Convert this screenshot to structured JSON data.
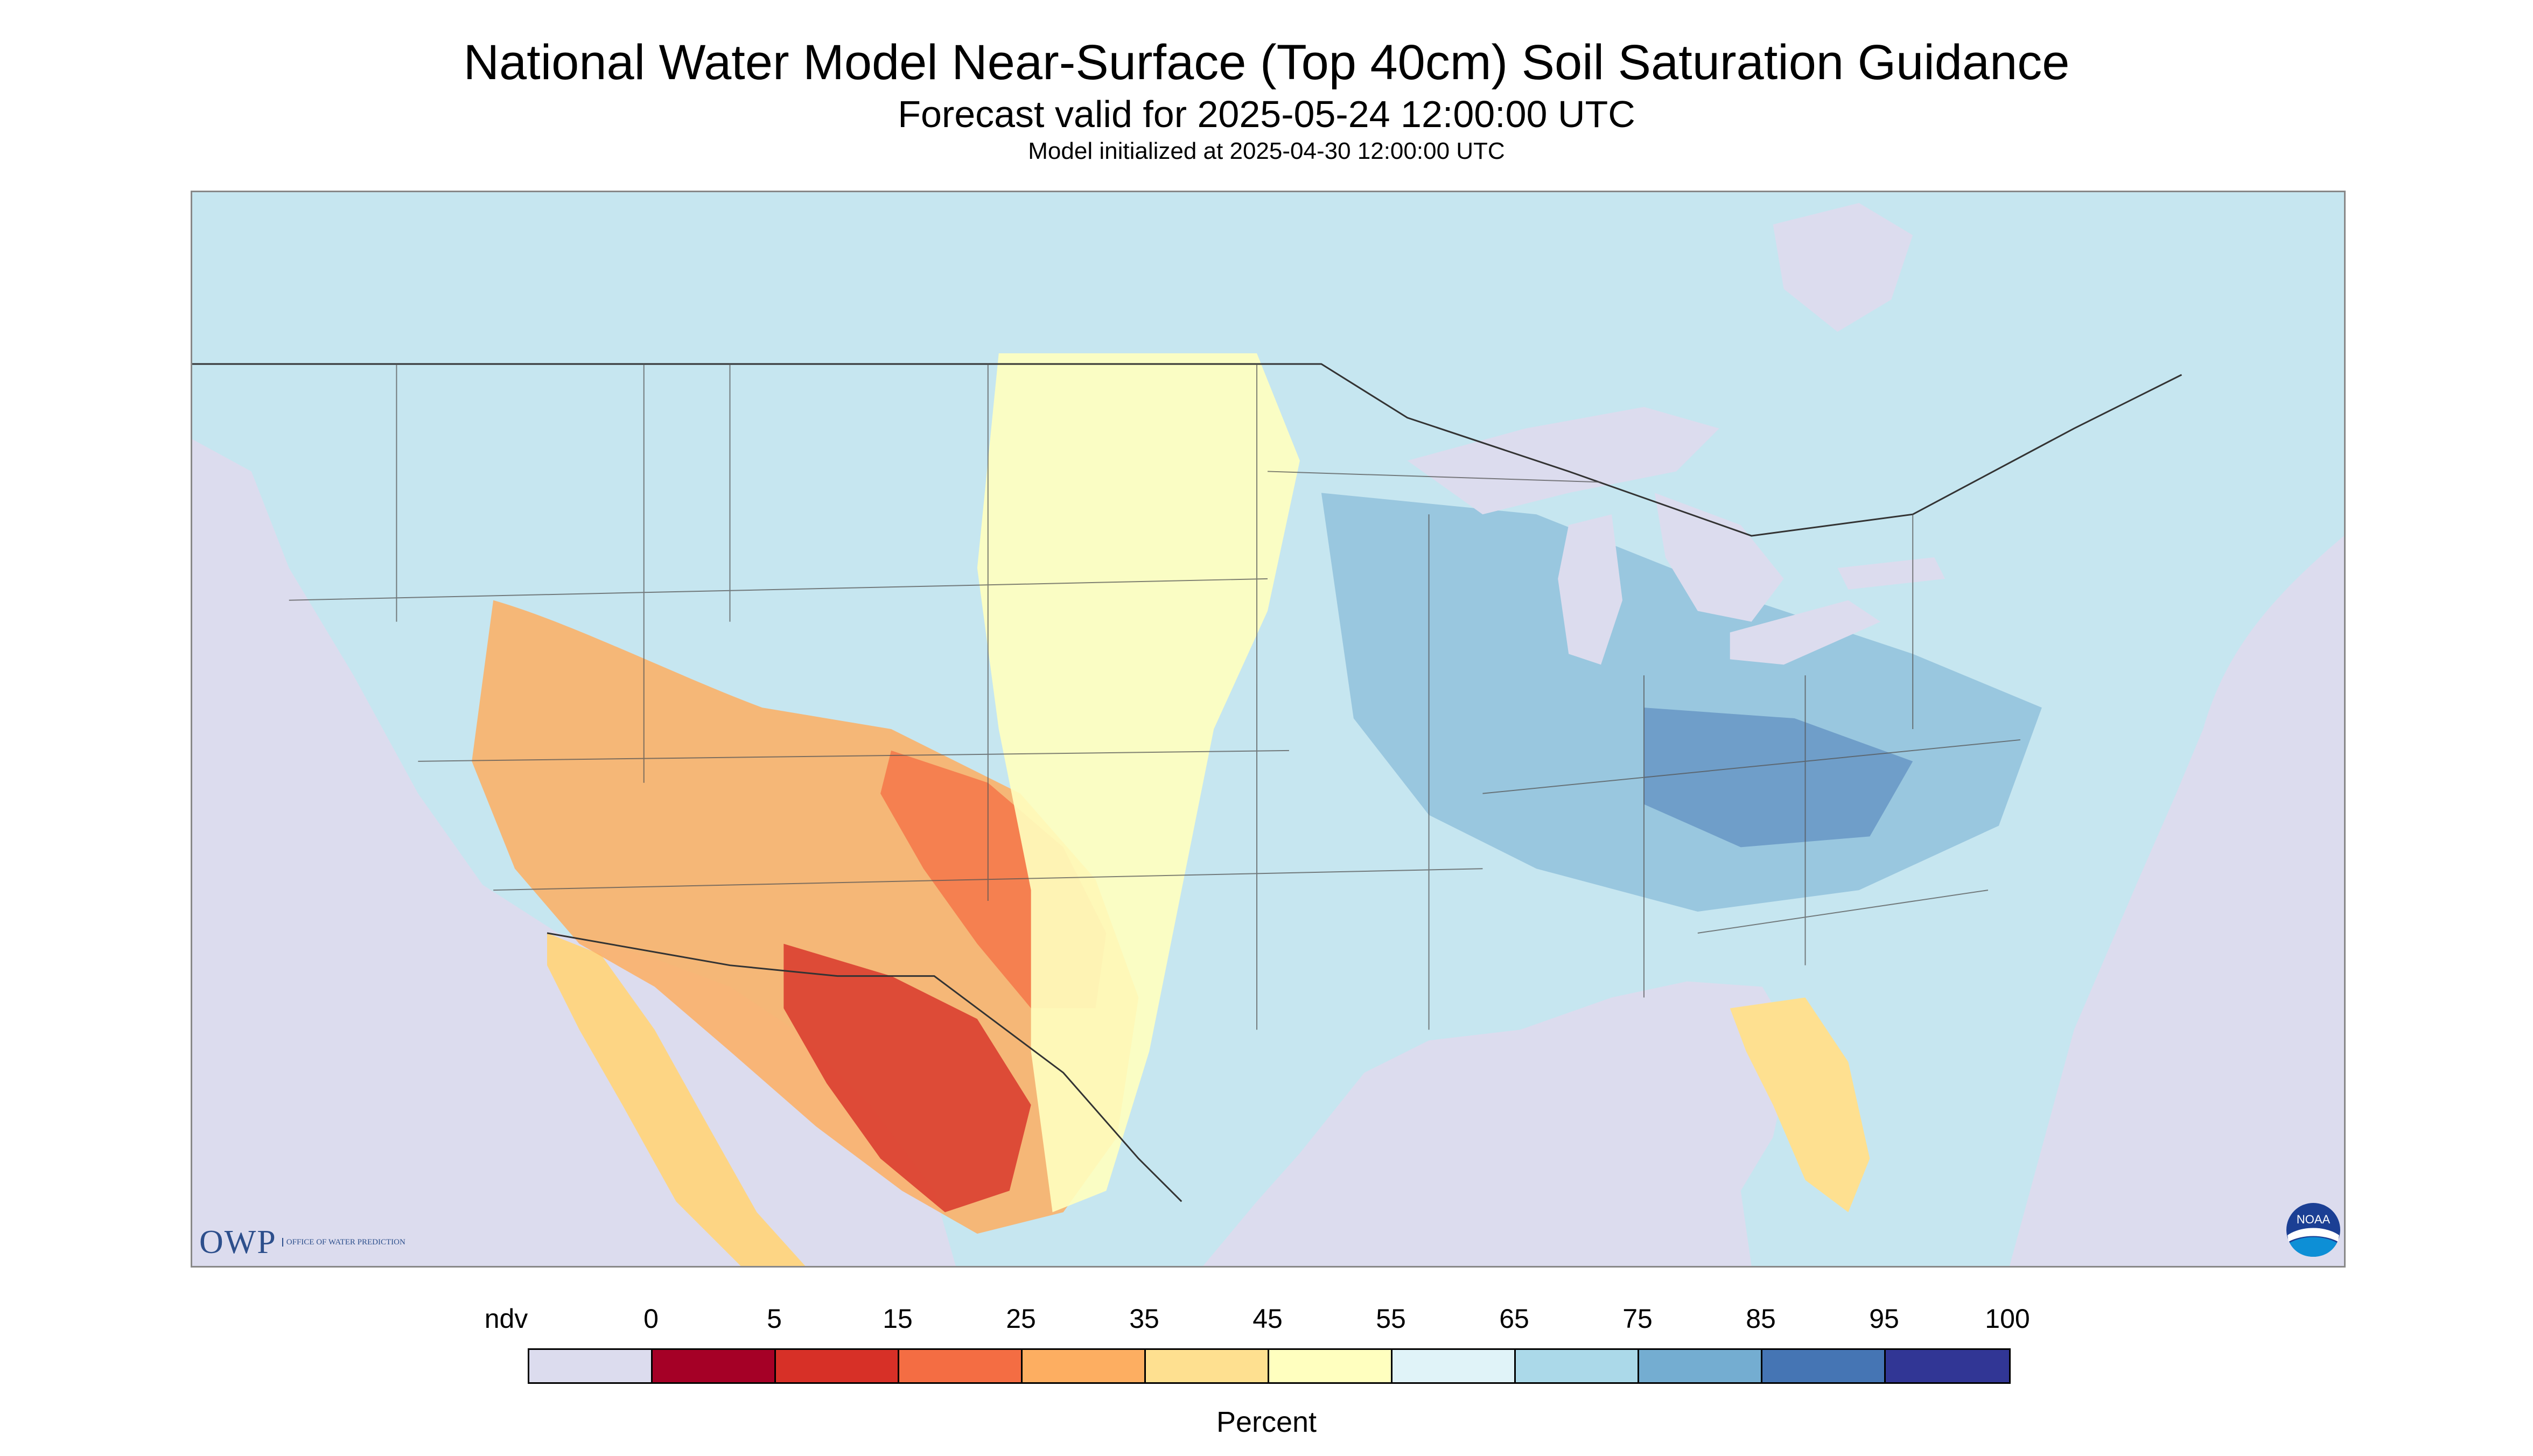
{
  "title": "National Water Model Near-Surface (Top 40cm) Soil Saturation Guidance",
  "subtitle": "Forecast valid for 2025-05-24 12:00:00 UTC",
  "init_line": "Model initialized at 2025-04-30 12:00:00 UTC",
  "logos": {
    "owp_word": "OWP",
    "owp_subtext": "Office of Water Prediction",
    "noaa_text": "NOAA"
  },
  "legend": {
    "units": "Percent",
    "labels": [
      "ndv",
      "0",
      "5",
      "15",
      "25",
      "35",
      "45",
      "55",
      "65",
      "75",
      "85",
      "95",
      "100"
    ],
    "colors": [
      "#dcdcee",
      "#a50026",
      "#d73027",
      "#f46d43",
      "#fdae61",
      "#fee090",
      "#ffffbf",
      "#e0f3f8",
      "#abd9e9",
      "#74add1",
      "#4575b4",
      "#313695"
    ]
  }
}
